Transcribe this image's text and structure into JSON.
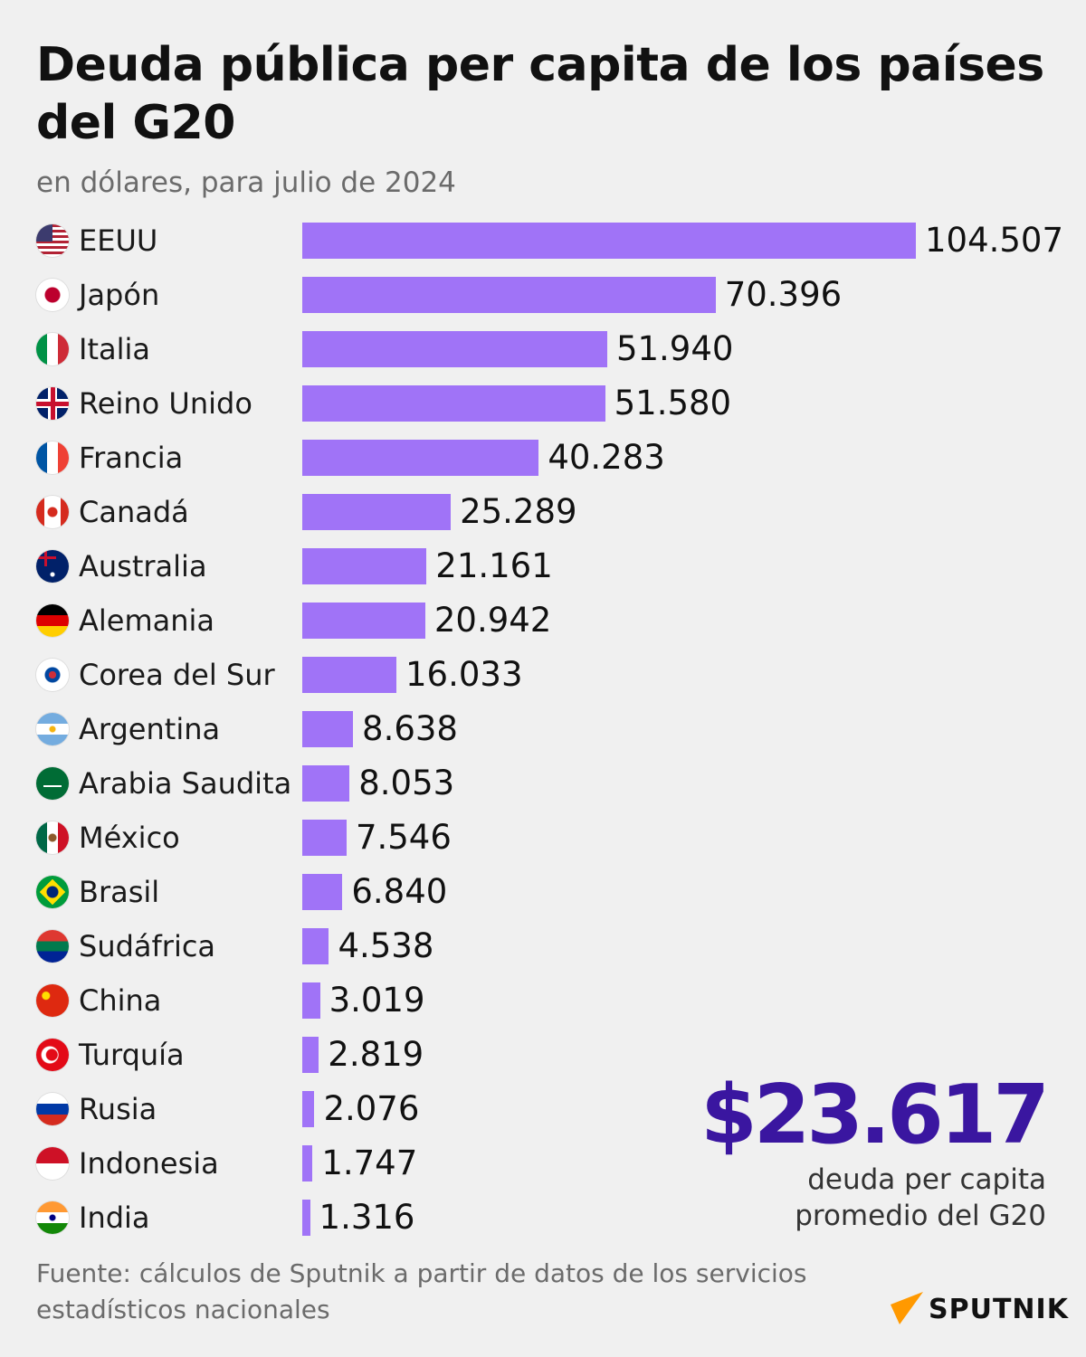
{
  "title": "Deuda pública per capita de los países del G20",
  "subtitle": "en dólares, para julio de 2024",
  "colors": {
    "bar": "#a073f7",
    "highlight": "#3a16a0",
    "background": "#f0f0f0",
    "logo_accent": "#ff9900"
  },
  "chart_data": {
    "type": "bar",
    "orientation": "horizontal",
    "title": "Deuda pública per capita de los países del G20",
    "subtitle": "en dólares, para julio de 2024",
    "categories": [
      "EEUU",
      "Japón",
      "Italia",
      "Reino Unido",
      "Francia",
      "Canadá",
      "Australia",
      "Alemania",
      "Corea del Sur",
      "Argentina",
      "Arabia Saudita",
      "México",
      "Brasil",
      "Sudáfrica",
      "China",
      "Turquía",
      "Rusia",
      "Indonesia",
      "India"
    ],
    "values": [
      104507,
      70396,
      51940,
      51580,
      40283,
      25289,
      21161,
      20942,
      16033,
      8638,
      8053,
      7546,
      6840,
      4538,
      3019,
      2819,
      2076,
      1747,
      1316
    ],
    "value_labels": [
      "104.507",
      "70.396",
      "51.940",
      "51.580",
      "40.283",
      "25.289",
      "21.161",
      "20.942",
      "16.033",
      "8.638",
      "8.053",
      "7.546",
      "6.840",
      "4.538",
      "3.019",
      "2.819",
      "2.076",
      "1.747",
      "1.316"
    ],
    "flags": [
      "us",
      "jp",
      "it",
      "gb",
      "fr",
      "ca",
      "au",
      "de",
      "kr",
      "ar",
      "sa",
      "mx",
      "br",
      "za",
      "cn",
      "tr",
      "ru",
      "id",
      "in"
    ],
    "xlim": [
      0,
      104507
    ],
    "grid": false,
    "legend": "none"
  },
  "summary": {
    "value": "$23.617",
    "caption_line1": "deuda per capita",
    "caption_line2": "promedio del G20"
  },
  "source": "Fuente: cálculos de Sputnik a partir de datos de los servicios estadísticos nacionales",
  "logo": {
    "text": "SPUTNIK"
  }
}
